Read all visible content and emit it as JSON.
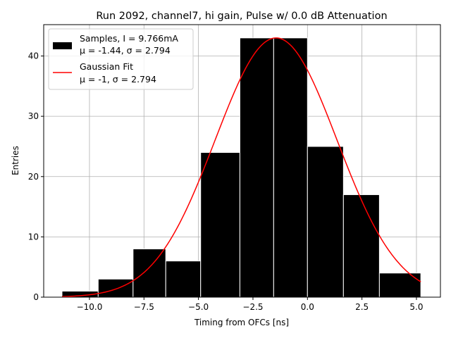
{
  "chart_data": {
    "type": "bar",
    "title": "Run 2092, channel7, hi gain, Pulse w/ 0.0 dB Attenuation",
    "xlabel": "Timing from OFCs [ns]",
    "ylabel": "Entries",
    "xlim": [
      -12.1,
      6.1
    ],
    "ylim": [
      0,
      45.2
    ],
    "grid": true,
    "legend_position": "top-left",
    "x_ticks": [
      -10.0,
      -7.5,
      -5.0,
      -2.5,
      0.0,
      2.5,
      5.0
    ],
    "x_tick_labels": [
      "−10.0",
      "−7.5",
      "−5.0",
      "−2.5",
      "0.0",
      "2.5",
      "5.0"
    ],
    "y_ticks": [
      0,
      10,
      20,
      30,
      40
    ],
    "y_tick_labels": [
      "0",
      "10",
      "20",
      "30",
      "40"
    ],
    "histogram": {
      "bin_edges": [
        -11.26,
        -9.6,
        -8.0,
        -6.5,
        -4.9,
        -3.1,
        -1.55,
        0.0,
        1.65,
        3.3,
        5.2
      ],
      "counts": [
        1,
        3,
        8,
        6,
        24,
        43,
        43,
        25,
        17,
        4
      ],
      "color": "#000000",
      "edge_color": "#ffffff"
    },
    "gaussian_fit": {
      "amplitude": 43,
      "mu": -1.44,
      "sigma": 2.794,
      "x_range": [
        -11.26,
        5.2
      ],
      "color": "#ff0000"
    },
    "legend": [
      {
        "line1": "Samples, I = 9.766mA",
        "line2": "μ = -1.44, σ = 2.794",
        "kind": "patch",
        "color": "#000000"
      },
      {
        "line1": "Gaussian Fit",
        "line2": "μ = -1, σ = 2.794",
        "kind": "line",
        "color": "#ff0000"
      }
    ]
  }
}
